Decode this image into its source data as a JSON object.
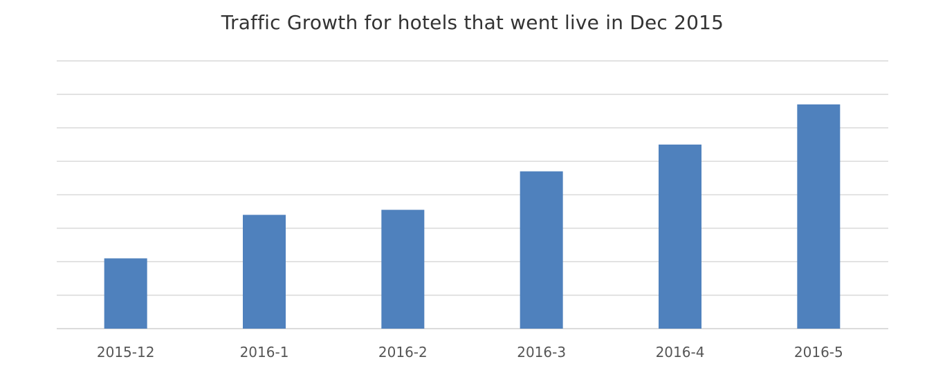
{
  "chart_data": {
    "type": "bar",
    "title": "Traffic Growth for hotels that went live in Dec 2015",
    "xlabel": "",
    "ylabel": "",
    "categories": [
      "2015-12",
      "2016-1",
      "2016-2",
      "2016-3",
      "2016-4",
      "2016-5"
    ],
    "series": [
      {
        "values": [
          2.1,
          3.4,
          3.55,
          4.7,
          5.5,
          6.7
        ]
      }
    ],
    "ylim": [
      0,
      8
    ],
    "y_tick_count": 9,
    "y_tick_labels_shown": false,
    "grid": true,
    "legend": "none",
    "colors": {
      "bar": "#4f81bd",
      "grid": "#d9d9d9",
      "text": "#555555",
      "title": "#333333"
    }
  }
}
